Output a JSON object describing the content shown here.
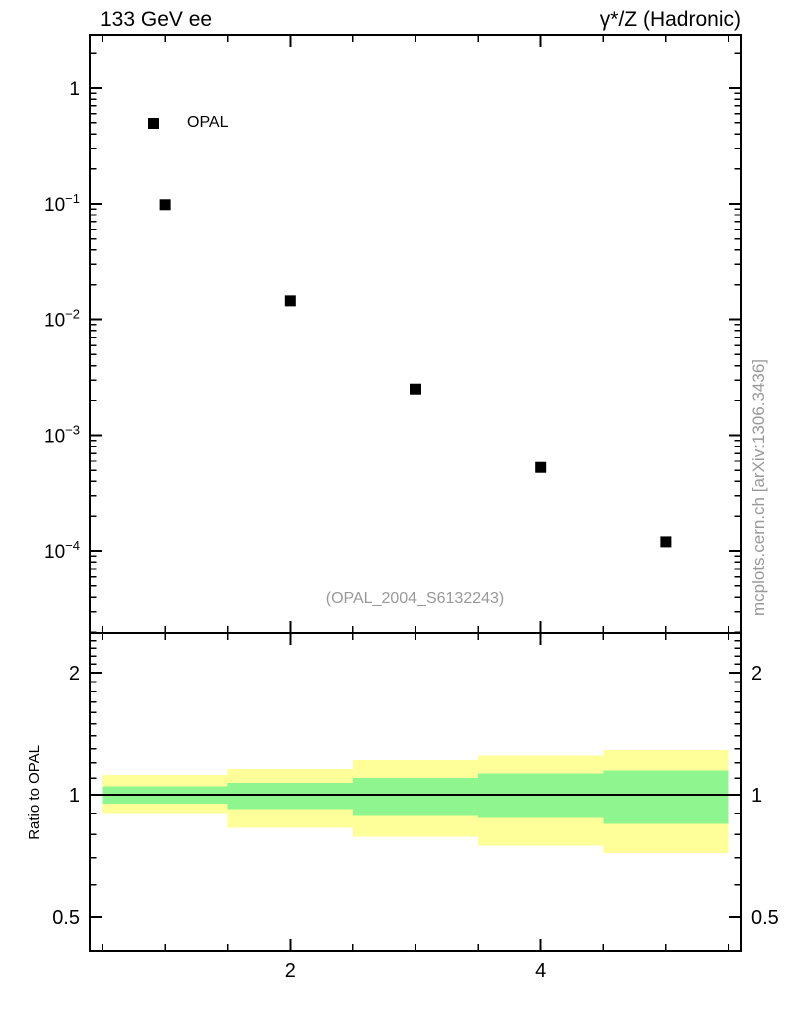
{
  "header": {
    "left_title": "133 GeV ee",
    "right_title": "γ*/Z (Hadronic)"
  },
  "watermark": "(OPAL_2004_S6132243)",
  "side_note": "mcplots.cern.ch [arXiv:1306.3436]",
  "ratio_axis_label": "Ratio to OPAL",
  "legend": {
    "label": "OPAL",
    "marker": "filled-square",
    "marker_color": "#000000"
  },
  "colors": {
    "axis": "#000000",
    "text_gray": "#999999",
    "band_outer": "#ffff99",
    "band_inner": "#8ff58f",
    "marker": "#000000",
    "background": "#ffffff"
  },
  "chart_data": [
    {
      "type": "scatter",
      "panel": "main",
      "series": [
        {
          "name": "OPAL",
          "marker": "filled-square",
          "color": "#000000",
          "x": [
            1,
            2,
            3,
            4,
            5
          ],
          "y": [
            0.098,
            0.0145,
            0.0025,
            0.00053,
            0.00012
          ]
        }
      ],
      "xlim": [
        0.4,
        5.6
      ],
      "ylim": [
        1.96e-05,
        2.87
      ],
      "ylog": true,
      "grid": false,
      "y_major_tick_exponents": [
        0,
        -1,
        -2,
        -3,
        -4
      ],
      "x_tick_min": 0.5,
      "x_tick_max": 5.5,
      "x_tick_step": 0.5,
      "x_labeled_ticks": [
        2,
        4
      ],
      "legend_position": "top-left"
    },
    {
      "type": "band",
      "panel": "ratio",
      "ylabel": "Ratio to OPAL",
      "bin_edges": [
        0.5,
        1.5,
        2.5,
        3.5,
        4.5,
        5.5
      ],
      "bands": [
        {
          "name": "mc-uncertainty-outer",
          "color": "#ffff99",
          "hi": [
            1.12,
            1.16,
            1.22,
            1.25,
            1.29
          ],
          "lo": [
            0.9,
            0.83,
            0.79,
            0.75,
            0.72
          ]
        },
        {
          "name": "mc-uncertainty-inner",
          "color": "#8ff58f",
          "hi": [
            1.05,
            1.07,
            1.1,
            1.13,
            1.15
          ],
          "lo": [
            0.95,
            0.92,
            0.89,
            0.88,
            0.85
          ]
        }
      ],
      "reference_line": 1,
      "xlim": [
        0.4,
        5.6
      ],
      "ylim": [
        0.412,
        2.51
      ],
      "ylog": true,
      "y_labeled_ticks": [
        2,
        1,
        0.5
      ],
      "y_minor_ticks": [
        0.6,
        0.7,
        0.8,
        0.9,
        1.1,
        1.2,
        1.3,
        1.4,
        1.5,
        1.6,
        1.7,
        1.8,
        1.9,
        2.1,
        2.2,
        2.3,
        2.4
      ],
      "x_tick_min": 0.5,
      "x_tick_max": 5.5,
      "x_tick_step": 0.5,
      "x_labeled_ticks": [
        2,
        4
      ]
    }
  ]
}
